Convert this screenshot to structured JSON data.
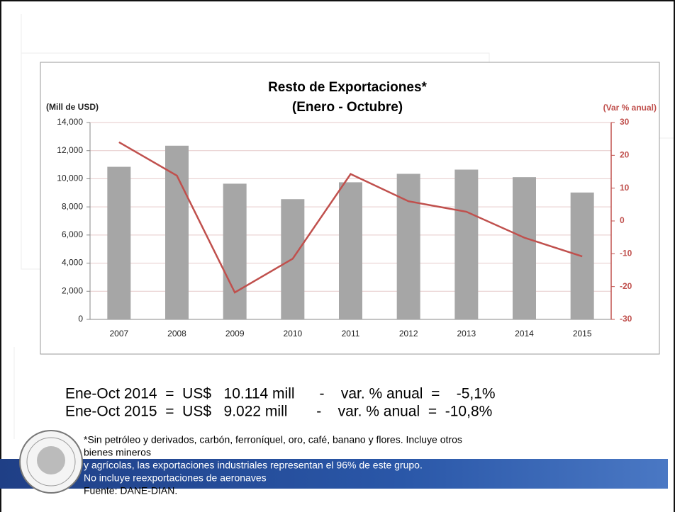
{
  "chart_data": {
    "type": "bar",
    "title": "Resto de Exportaciones*",
    "subtitle": "(Enero - Octubre)",
    "ylabel": "(Mill de USD)",
    "y2label": "(Var % anual)",
    "categories": [
      "2007",
      "2008",
      "2009",
      "2010",
      "2011",
      "2012",
      "2013",
      "2014",
      "2015"
    ],
    "series": [
      {
        "type": "bar",
        "color": "#a6a6a6",
        "values": [
          10850,
          12350,
          9650,
          8550,
          9750,
          10350,
          10650,
          10114,
          9022
        ]
      },
      {
        "type": "line",
        "axis": "y2",
        "color": "#c0504d",
        "values": [
          24,
          13.8,
          -21.8,
          -11.5,
          14.3,
          6,
          2.8,
          -5.1,
          -10.8
        ]
      }
    ],
    "ylim": [
      0,
      14000
    ],
    "yticks": [
      0,
      {
        "value": 2000,
        "label": "2,000"
      },
      {
        "value": 4000,
        "label": "4,000"
      },
      {
        "value": 6000,
        "label": "6,000"
      },
      {
        "value": 8000,
        "label": "8,000"
      },
      {
        "value": 10000,
        "label": "10,000"
      },
      {
        "value": 12000,
        "label": "12,000"
      },
      {
        "value": 14000,
        "label": "14,000"
      }
    ],
    "y2lim": [
      -30,
      30
    ],
    "y2ticks": [
      -30,
      -20,
      -10,
      0,
      10,
      20,
      30
    ],
    "y2color": "#c0504d",
    "grid": true
  },
  "slide": {
    "summary": [
      "Ene-Oct 2014  =  US$   10.114 mill      -    var. % anual  =    -5,1%",
      "Ene-Oct 2015  =  US$   9.022 mill       -    var. % anual  =  -10,8%"
    ],
    "footnote": [
      "*Sin petróleo y derivados, carbón, ferroníquel, oro, café, banano y flores. Incluye otros",
      "bienes mineros",
      "y agrícolas, las exportaciones industriales representan el 96% de este grupo.",
      "No incluye reexportaciones de aeronaves",
      "Fuente: DANE-DIAN."
    ]
  }
}
